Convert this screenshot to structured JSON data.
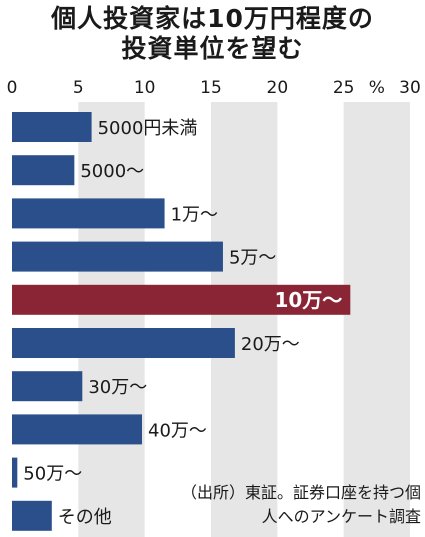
{
  "title_line1": "個人投資家は10万円程度の",
  "title_line2": "投資単位を望む",
  "note_line1": "（出所）東証。証券口座を持つ個",
  "note_line2": "人へのアンケート調査",
  "colors": {
    "bar": "#2b4f8a",
    "highlight": "#8a2535",
    "band": "#e6e6e6"
  },
  "chart_data": {
    "type": "bar",
    "orientation": "horizontal",
    "xlim": [
      0,
      30
    ],
    "xticks": [
      "0",
      "5",
      "10",
      "15",
      "20",
      "25",
      "30"
    ],
    "unit": "%",
    "categories": [
      "5000円未満",
      "5000～",
      "1万～",
      "5万～",
      "10万～",
      "20万～",
      "30万～",
      "40万～",
      "50万～",
      "その他"
    ],
    "values": [
      6.0,
      4.7,
      11.5,
      15.9,
      25.5,
      16.8,
      5.3,
      9.8,
      0.4,
      3.0
    ],
    "highlight_index": 4
  }
}
